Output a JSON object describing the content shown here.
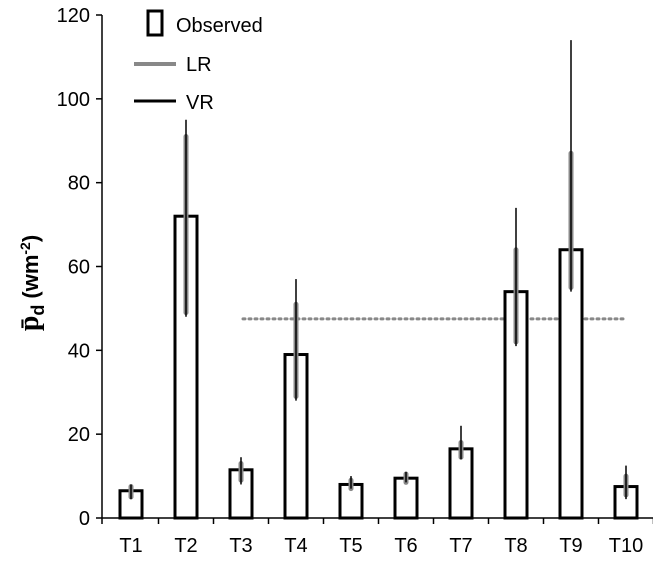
{
  "chart_data": {
    "type": "bar",
    "categories": [
      "T1",
      "T2",
      "T3",
      "T4",
      "T5",
      "T6",
      "T7",
      "T8",
      "T9",
      "T10"
    ],
    "series": [
      {
        "name": "Observed",
        "values": [
          6.5,
          72,
          11.5,
          39,
          8,
          9.5,
          16.5,
          54,
          64,
          7.5
        ]
      }
    ],
    "error_bars": {
      "LR": {
        "low": [
          5,
          49,
          9,
          29,
          7,
          8.5,
          14.5,
          42,
          55,
          5.5
        ],
        "high": [
          7.5,
          91,
          13,
          51,
          9,
          10.5,
          18,
          64,
          87,
          10
        ]
      },
      "VR": {
        "low": [
          4.5,
          48,
          8,
          28,
          7,
          8.5,
          14,
          41,
          54,
          4.5
        ],
        "high": [
          8,
          95,
          14.5,
          57,
          10,
          11,
          22,
          74,
          114,
          12.5
        ]
      }
    },
    "reference_line": {
      "value": 47.5,
      "style": "dotted",
      "color": "#888888"
    },
    "ylabel_main": "p̄",
    "ylabel_sub": "d",
    "ylabel_unit": "(wm",
    "ylabel_sup": "-2",
    "ylabel_close": ")",
    "ylim": [
      0,
      120
    ],
    "yticks": [
      0,
      20,
      40,
      60,
      80,
      100,
      120
    ],
    "legend": {
      "position": "top-left",
      "entries": [
        {
          "label": "Observed",
          "kind": "bar"
        },
        {
          "label": "LR",
          "kind": "line",
          "color": "#888888"
        },
        {
          "label": "VR",
          "kind": "line",
          "color": "#000000"
        }
      ]
    },
    "grid": false,
    "colors": {
      "bar_fill": "#ffffff",
      "bar_stroke": "#000000",
      "lr": "#888888",
      "vr": "#000000"
    }
  }
}
